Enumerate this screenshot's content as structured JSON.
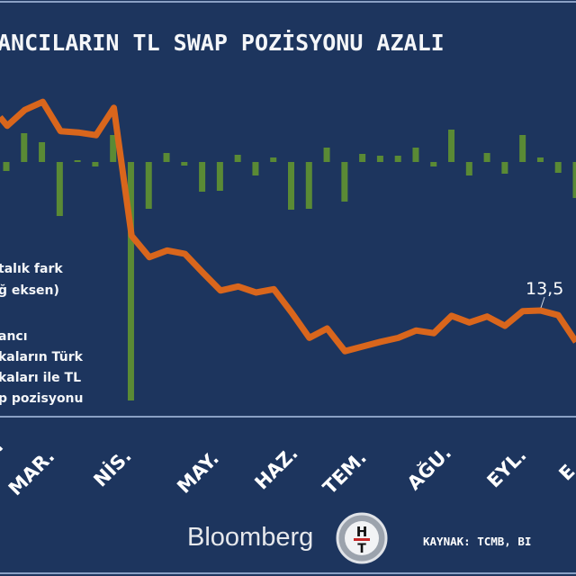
{
  "title": "ANCILARIN TL SWAP POZİSYONU AZALI",
  "legend": {
    "line_series": [
      "talık fark",
      "ğ eksen)"
    ],
    "bar_series": [
      "ancı",
      "kaların Türk",
      "kaları ile TL",
      "p pozisyonu"
    ]
  },
  "footer": {
    "brand": "Bloomberg",
    "brand_logo_letters": "HT",
    "source": "KAYNAK: TCMB, BI"
  },
  "colors": {
    "background": "#1d355e",
    "line": "#d9661c",
    "bars": "#5a8a35",
    "text": "#ffffff"
  },
  "chart_data": {
    "type": "bar+line",
    "x_tick_labels": [
      ".",
      "MAR.",
      "NİS.",
      "MAY.",
      "HAZ.",
      "TEM.",
      "AĞU.",
      "EYL.",
      "E"
    ],
    "annotation": {
      "text": "13,5",
      "at_point_index": 31
    },
    "grid": false,
    "legend_placement": "left",
    "bars": {
      "values": [
        -1.0,
        3.2,
        2.2,
        -6.0,
        0.2,
        -0.5,
        3.0,
        -26.5,
        -5.2,
        1.0,
        -0.4,
        -3.3,
        -3.2,
        0.8,
        -1.5,
        0.5,
        -5.3,
        -5.2,
        1.6,
        -4.4,
        0.9,
        0.7,
        0.7,
        1.6,
        -0.5,
        3.6,
        -1.5,
        1.0,
        -1.3,
        3.0,
        0.5,
        -1.2,
        -4.0
      ]
    },
    "line": {
      "values": [
        42.5,
        41.2,
        43.6,
        44.8,
        40.4,
        40.2,
        39.8,
        43.9,
        24.7,
        21.5,
        22.5,
        22.0,
        19.2,
        16.5,
        17.1,
        16.2,
        16.7,
        13.2,
        9.4,
        10.8,
        7.4,
        8.1,
        8.8,
        9.4,
        10.5,
        10.1,
        12.7,
        11.7,
        12.6,
        11.2,
        13.4,
        13.5,
        12.8,
        8.8
      ]
    }
  }
}
